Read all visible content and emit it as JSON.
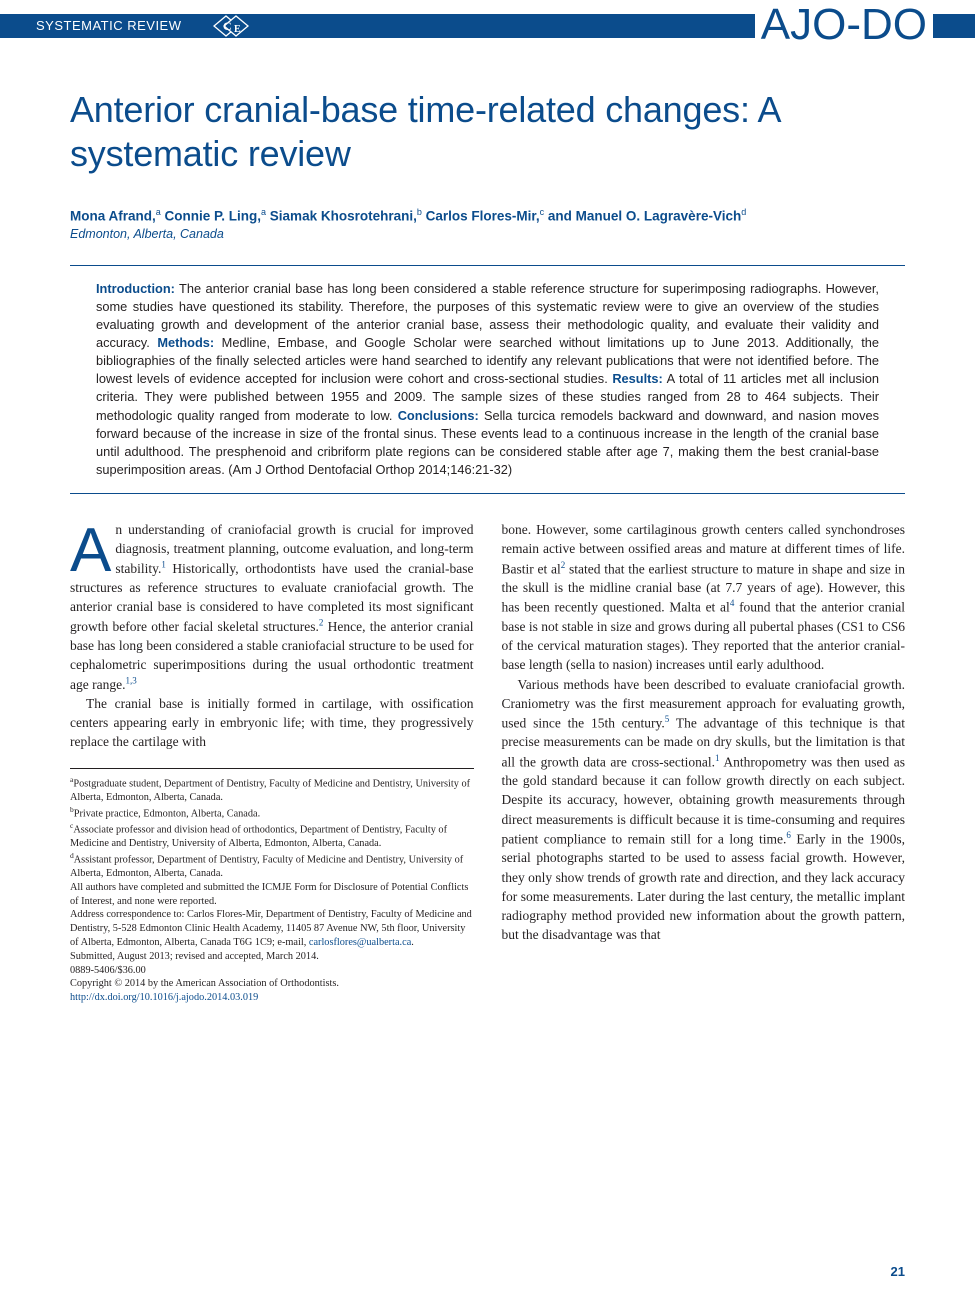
{
  "colors": {
    "brand": "#0b4c8c",
    "text": "#231f20",
    "background": "#ffffff"
  },
  "header": {
    "section_label": "SYSTEMATIC REVIEW",
    "ce_badge_letters": "CE",
    "journal_logo": "AJO-DO"
  },
  "title": "Anterior cranial-base time-related changes: A systematic review",
  "authors_html": "Mona Afrand,<sup>a</sup> Connie P. Ling,<sup>a</sup> Siamak Khosrotehrani,<sup>b</sup> Carlos Flores-Mir,<sup>c</sup> and Manuel O. Lagravère-Vich<sup>d</sup>",
  "affiliation_city": "Edmonton, Alberta, Canada",
  "abstract": {
    "sections": [
      {
        "heading": "Introduction:",
        "text": "The anterior cranial base has long been considered a stable reference structure for superimposing radiographs. However, some studies have questioned its stability. Therefore, the purposes of this systematic review were to give an overview of the studies evaluating growth and development of the anterior cranial base, assess their methodologic quality, and evaluate their validity and accuracy. "
      },
      {
        "heading": "Methods:",
        "text": "Medline, Embase, and Google Scholar were searched without limitations up to June 2013. Additionally, the bibliographies of the finally selected articles were hand searched to identify any relevant publications that were not identified before. The lowest levels of evidence accepted for inclusion were cohort and cross-sectional studies. "
      },
      {
        "heading": "Results:",
        "text": "A total of 11 articles met all inclusion criteria. They were published between 1955 and 2009. The sample sizes of these studies ranged from 28 to 464 subjects. Their methodologic quality ranged from moderate to low. "
      },
      {
        "heading": "Conclusions:",
        "text": "Sella turcica remodels backward and downward, and nasion moves forward because of the increase in size of the frontal sinus. These events lead to a continuous increase in the length of the cranial base until adulthood. The presphenoid and cribriform plate regions can be considered stable after age 7, making them the best cranial-base superimposition areas. (Am J Orthod Dentofacial Orthop 2014;146:21-32)"
      }
    ]
  },
  "body": {
    "left": {
      "p1_dropcap": "A",
      "p1": "n understanding of craniofacial growth is crucial for improved diagnosis, treatment planning, outcome evaluation, and long-term stability.<span class=\"ref-sup\">1</span> Historically, orthodontists have used the cranial-base structures as reference structures to evaluate craniofacial growth. The anterior cranial base is considered to have completed its most significant growth before other facial skeletal structures.<span class=\"ref-sup\">2</span> Hence, the anterior cranial base has long been considered a stable craniofacial structure to be used for cephalometric superimpositions during the usual orthodontic treatment age range.<span class=\"ref-sup\">1,3</span>",
      "p2": "The cranial base is initially formed in cartilage, with ossification centers appearing early in embryonic life; with time, they progressively replace the cartilage with"
    },
    "right": {
      "p1": "bone. However, some cartilaginous growth centers called synchondroses remain active between ossified areas and mature at different times of life. Bastir et al<span class=\"ref-sup\">2</span> stated that the earliest structure to mature in shape and size in the skull is the midline cranial base (at 7.7 years of age). However, this has been recently questioned. Malta et al<span class=\"ref-sup\">4</span> found that the anterior cranial base is not stable in size and grows during all pubertal phases (CS1 to CS6 of the cervical maturation stages). They reported that the anterior cranial-base length (sella to nasion) increases until early adulthood.",
      "p2": "Various methods have been described to evaluate craniofacial growth. Craniometry was the first measurement approach for evaluating growth, used since the 15th century.<span class=\"ref-sup\">5</span> The advantage of this technique is that precise measurements can be made on dry skulls, but the limitation is that all the growth data are cross-sectional.<span class=\"ref-sup\">1</span> Anthropometry was then used as the gold standard because it can follow growth directly on each subject. Despite its accuracy, however, obtaining growth measurements through direct measurements is difficult because it is time-consuming and requires patient compliance to remain still for a long time.<span class=\"ref-sup\">6</span> Early in the 1900s, serial photographs started to be used to assess facial growth. However, they only show trends of growth rate and direction, and they lack accuracy for some measurements. Later during the last century, the metallic implant radiography method provided new information about the growth pattern, but the disadvantage was that"
    }
  },
  "footnotes": [
    "<sup>a</sup>Postgraduate student, Department of Dentistry, Faculty of Medicine and Dentistry, University of Alberta, Edmonton, Alberta, Canada.",
    "<sup>b</sup>Private practice, Edmonton, Alberta, Canada.",
    "<sup>c</sup>Associate professor and division head of orthodontics, Department of Dentistry, Faculty of Medicine and Dentistry, University of Alberta, Edmonton, Alberta, Canada.",
    "<sup>d</sup>Assistant professor, Department of Dentistry, Faculty of Medicine and Dentistry, University of Alberta, Edmonton, Alberta, Canada.",
    "All authors have completed and submitted the ICMJE Form for Disclosure of Potential Conflicts of Interest, and none were reported.",
    "Address correspondence to: Carlos Flores-Mir, Department of Dentistry, Faculty of Medicine and Dentistry, 5-528 Edmonton Clinic Health Academy, 11405 87 Avenue NW, 5th floor, University of Alberta, Edmonton, Alberta, Canada T6G 1C9; e-mail, <span class=\"link\">carlosflores@ualberta.ca</span>.",
    "Submitted, August 2013; revised and accepted, March 2014.",
    "0889-5406/$36.00",
    "Copyright © 2014 by the American Association of Orthodontists.",
    "<span class=\"link\">http://dx.doi.org/10.1016/j.ajodo.2014.03.019</span>"
  ],
  "page_number": "21"
}
